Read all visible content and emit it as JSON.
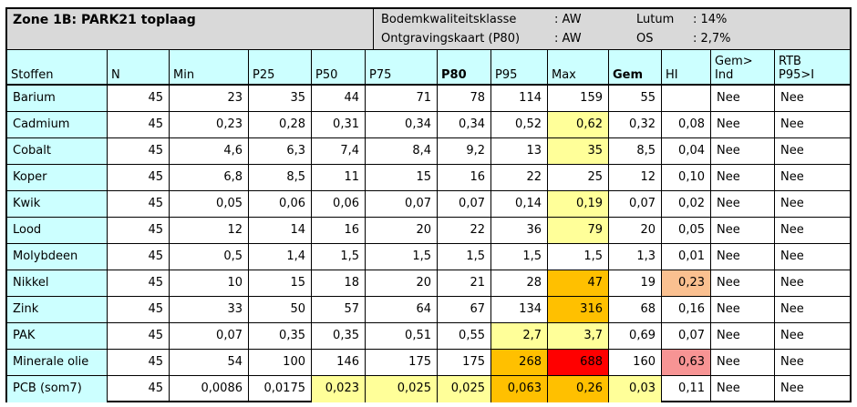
{
  "title": "Zone 1B: PARK21 toplaag",
  "meta": {
    "bkk_label": "Bodemkwaliteitsklasse",
    "bkk_value": ": AW",
    "ok_label": "Ontgravingskaart (P80)",
    "ok_value": ": AW",
    "lutum_label": "Lutum",
    "lutum_value": ": 14%",
    "os_label": "OS",
    "os_value": ": 2,7%"
  },
  "headers": [
    "Stoffen",
    "N",
    "Min",
    "P25",
    "P50",
    "P75",
    "P80",
    "P95",
    "Max",
    "Gem",
    "HI",
    "Gem>\nInd",
    "RTB\nP95>I"
  ],
  "colors": {
    "light_yellow": "#ffff99",
    "orange": "#ffc000",
    "red": "#ff0000",
    "peach": "#fac090",
    "salmon": "#f79494"
  },
  "rows": [
    {
      "name": "Barium",
      "vals": [
        "45",
        "23",
        "35",
        "44",
        "71",
        "78",
        "114",
        "159",
        "55",
        "",
        "Nee",
        "Nee"
      ],
      "hl": {}
    },
    {
      "name": "Cadmium",
      "vals": [
        "45",
        "0,23",
        "0,28",
        "0,31",
        "0,34",
        "0,34",
        "0,52",
        "0,62",
        "0,32",
        "0,08",
        "Nee",
        "Nee"
      ],
      "hl": {
        "7": "light_yellow"
      }
    },
    {
      "name": "Cobalt",
      "vals": [
        "45",
        "4,6",
        "6,3",
        "7,4",
        "8,4",
        "9,2",
        "13",
        "35",
        "8,5",
        "0,04",
        "Nee",
        "Nee"
      ],
      "hl": {
        "7": "light_yellow"
      }
    },
    {
      "name": "Koper",
      "vals": [
        "45",
        "6,8",
        "8,5",
        "11",
        "15",
        "16",
        "22",
        "25",
        "12",
        "0,10",
        "Nee",
        "Nee"
      ],
      "hl": {}
    },
    {
      "name": "Kwik",
      "vals": [
        "45",
        "0,05",
        "0,06",
        "0,06",
        "0,07",
        "0,07",
        "0,14",
        "0,19",
        "0,07",
        "0,02",
        "Nee",
        "Nee"
      ],
      "hl": {
        "7": "light_yellow"
      }
    },
    {
      "name": "Lood",
      "vals": [
        "45",
        "12",
        "14",
        "16",
        "20",
        "22",
        "36",
        "79",
        "20",
        "0,05",
        "Nee",
        "Nee"
      ],
      "hl": {
        "7": "light_yellow"
      }
    },
    {
      "name": "Molybdeen",
      "vals": [
        "45",
        "0,5",
        "1,4",
        "1,5",
        "1,5",
        "1,5",
        "1,5",
        "1,5",
        "1,3",
        "0,01",
        "Nee",
        "Nee"
      ],
      "hl": {}
    },
    {
      "name": "Nikkel",
      "vals": [
        "45",
        "10",
        "15",
        "18",
        "20",
        "21",
        "28",
        "47",
        "19",
        "0,23",
        "Nee",
        "Nee"
      ],
      "hl": {
        "7": "orange",
        "9": "peach"
      }
    },
    {
      "name": "Zink",
      "vals": [
        "45",
        "33",
        "50",
        "57",
        "64",
        "67",
        "134",
        "316",
        "68",
        "0,16",
        "Nee",
        "Nee"
      ],
      "hl": {
        "7": "orange"
      }
    },
    {
      "name": "PAK",
      "vals": [
        "45",
        "0,07",
        "0,35",
        "0,35",
        "0,51",
        "0,55",
        "2,7",
        "3,7",
        "0,69",
        "0,07",
        "Nee",
        "Nee"
      ],
      "hl": {
        "6": "light_yellow",
        "7": "light_yellow"
      }
    },
    {
      "name": "Minerale olie",
      "vals": [
        "45",
        "54",
        "100",
        "146",
        "175",
        "175",
        "268",
        "688",
        "160",
        "0,63",
        "Nee",
        "Nee"
      ],
      "hl": {
        "6": "orange",
        "7": "red",
        "9": "salmon"
      }
    },
    {
      "name": "PCB (som7)",
      "vals": [
        "45",
        "0,0086",
        "0,0175",
        "0,023",
        "0,025",
        "0,025",
        "0,063",
        "0,26",
        "0,03",
        "0,11",
        "Nee",
        "Nee"
      ],
      "hl": {
        "3": "light_yellow",
        "4": "light_yellow",
        "5": "light_yellow",
        "6": "orange",
        "7": "orange",
        "8": "light_yellow"
      }
    }
  ]
}
